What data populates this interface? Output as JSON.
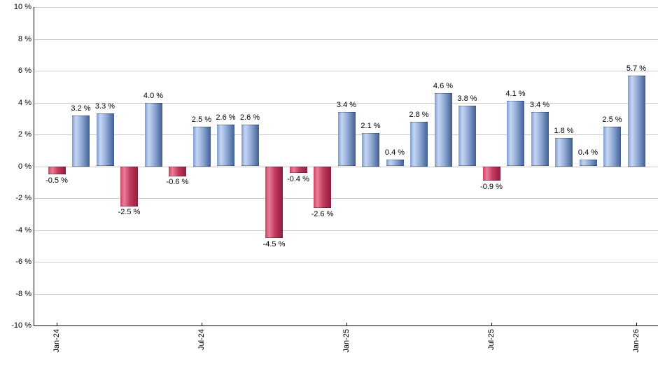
{
  "chart_data": {
    "type": "bar",
    "title": "",
    "xlabel": "",
    "ylabel": "",
    "values": [
      -0.5,
      3.2,
      3.3,
      -2.5,
      4.0,
      -0.6,
      2.5,
      2.6,
      2.6,
      -4.5,
      -0.4,
      -2.6,
      3.4,
      2.1,
      0.4,
      2.8,
      4.6,
      3.8,
      -0.9,
      4.1,
      3.4,
      1.8,
      0.4,
      2.5,
      5.7
    ],
    "bar_value_labels": [
      "-0.5 %",
      "3.2 %",
      "3.3 %",
      "-2.5 %",
      "4.0 %",
      "-0.6 %",
      "2.5 %",
      "2.6 %",
      "2.6 %",
      "-4.5 %",
      "-0.4 %",
      "-2.6 %",
      "3.4 %",
      "2.1 %",
      "0.4 %",
      "2.8 %",
      "4.6 %",
      "3.8 %",
      "-0.9 %",
      "4.1 %",
      "3.4 %",
      "1.8 %",
      "0.4 %",
      "2.5 %",
      "5.7 %"
    ],
    "y_axis": {
      "min": -10,
      "max": 10,
      "tick_step": 2,
      "tick_labels": [
        "10 %",
        "8 %",
        "6 %",
        "4 %",
        "2 %",
        "0 %",
        "-2 %",
        "-4 %",
        "-6 %",
        "-8 %",
        "-10 %"
      ],
      "grid": true
    },
    "x_axis": {
      "ticks": [
        {
          "position": 0,
          "label": "Jan-24"
        },
        {
          "position": 6,
          "label": "Jul-24"
        },
        {
          "position": 12,
          "label": "Jan-25"
        },
        {
          "position": 18,
          "label": "Jul-25"
        },
        {
          "position": 24,
          "label": "Jan-26"
        }
      ]
    },
    "legend": null,
    "colors": {
      "positive_gradient": [
        "#7D9CD1",
        "#C6D6F2",
        "#8FA9D6",
        "#405E90"
      ],
      "negative_gradient": [
        "#CE4265",
        "#EA7E96",
        "#C53A5F",
        "#8D1E3E"
      ],
      "gridline": "#CCCCCC",
      "axis": "#000000",
      "background": "#FFFFFF",
      "label_text": "#000000"
    }
  }
}
